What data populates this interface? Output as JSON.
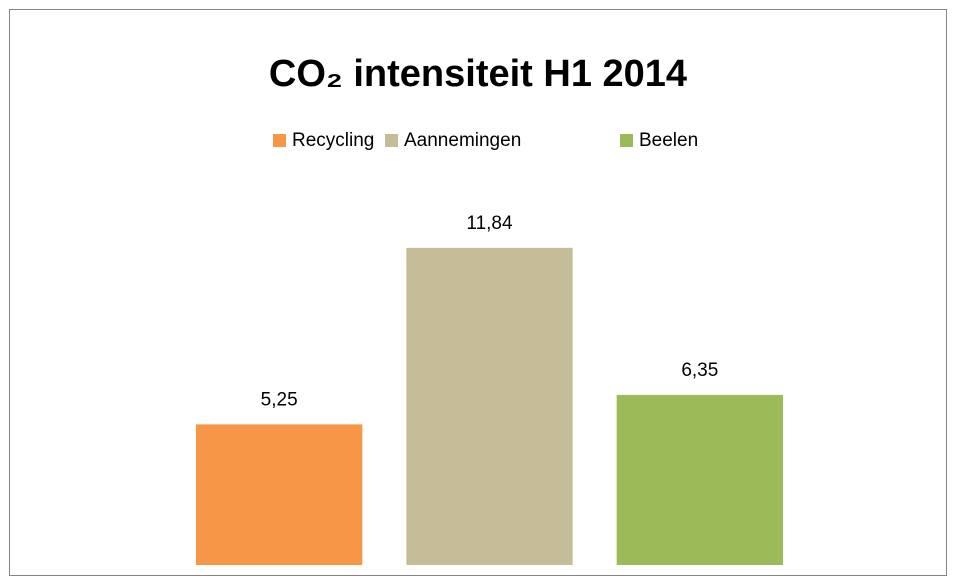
{
  "chart_data": {
    "type": "bar",
    "title": "CO₂ intensiteit H1 2014",
    "categories": [
      null
    ],
    "series": [
      {
        "name": "Recycling",
        "color": "#f79646",
        "values": [
          5.25
        ],
        "value_labels": [
          "5,25"
        ]
      },
      {
        "name": "Aannemingen",
        "color": "#c4bd97",
        "values": [
          11.84
        ],
        "value_labels": [
          "11,84"
        ]
      },
      {
        "name": "Beelen",
        "color": "#9bbb59",
        "values": [
          6.35
        ],
        "value_labels": [
          "6,35"
        ]
      }
    ],
    "ylim": [
      0,
      14
    ],
    "legend": "top"
  }
}
